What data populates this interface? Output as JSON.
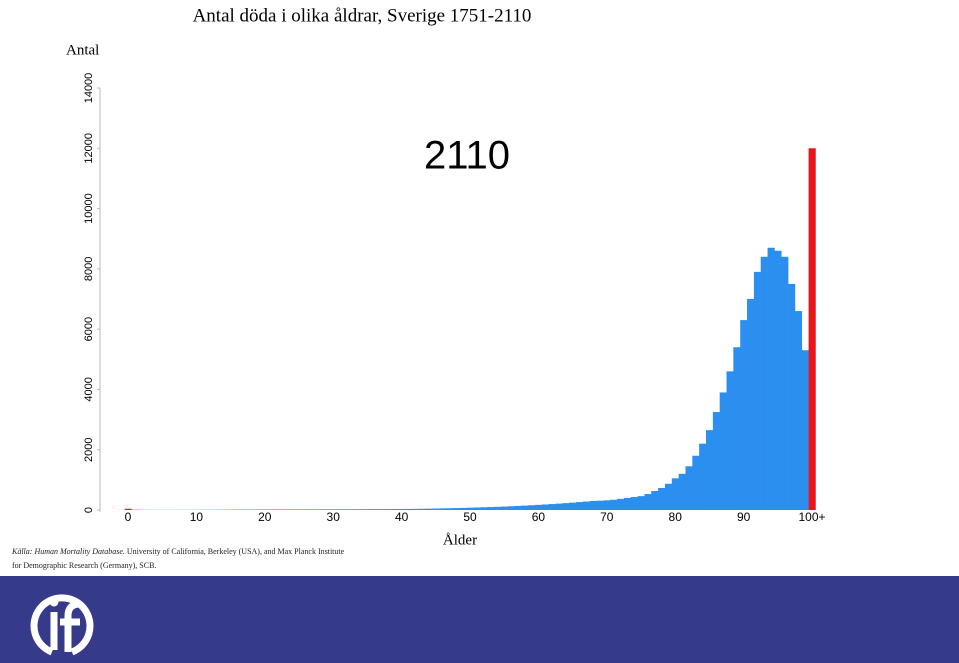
{
  "chart_data": {
    "type": "bar",
    "title": "Antal döda i olika åldrar, Sverige 1751-2110",
    "y_label": "Antal",
    "x_label": "Ålder",
    "annotation": "2110",
    "source_italic": "Källa: Human Mortality Database.",
    "source": "University of California, Berkeley (USA), and Max Planck Institute for Demographic Research (Germany), SCB.",
    "categories": [
      "0",
      null,
      null,
      null,
      null,
      null,
      null,
      null,
      null,
      null,
      "10",
      null,
      null,
      null,
      null,
      null,
      null,
      null,
      null,
      null,
      "20",
      null,
      null,
      null,
      null,
      null,
      null,
      null,
      null,
      null,
      "30",
      null,
      null,
      null,
      null,
      null,
      null,
      null,
      null,
      null,
      "40",
      null,
      null,
      null,
      null,
      null,
      null,
      null,
      null,
      null,
      "50",
      null,
      null,
      null,
      null,
      null,
      null,
      null,
      null,
      null,
      "60",
      null,
      null,
      null,
      null,
      null,
      null,
      null,
      null,
      null,
      "70",
      null,
      null,
      null,
      null,
      null,
      null,
      null,
      null,
      null,
      "80",
      null,
      null,
      null,
      null,
      null,
      null,
      null,
      null,
      null,
      "90",
      null,
      null,
      null,
      null,
      null,
      null,
      null,
      null,
      null,
      "100+"
    ],
    "values": [
      40,
      12,
      8,
      6,
      5,
      5,
      5,
      5,
      6,
      6,
      7,
      8,
      9,
      10,
      11,
      12,
      14,
      15,
      16,
      17,
      18,
      18,
      19,
      19,
      20,
      20,
      21,
      21,
      22,
      23,
      23,
      24,
      24,
      25,
      26,
      27,
      28,
      29,
      30,
      31,
      33,
      35,
      38,
      41,
      45,
      49,
      54,
      59,
      64,
      70,
      76,
      83,
      90,
      98,
      106,
      115,
      125,
      135,
      146,
      158,
      170,
      183,
      197,
      212,
      228,
      245,
      263,
      282,
      300,
      310,
      320,
      340,
      370,
      400,
      430,
      460,
      530,
      630,
      730,
      870,
      1050,
      1200,
      1450,
      1800,
      2200,
      2650,
      3250,
      3900,
      4600,
      5400,
      6300,
      7000,
      7900,
      8400,
      8700,
      8600,
      8400,
      7500,
      6600,
      5300,
      12000
    ],
    "colors": [
      "#e8151b",
      "#2b8ff0",
      "#2b8ff0",
      "#2b8ff0",
      "#2b8ff0",
      "#2b8ff0",
      "#2b8ff0",
      "#2b8ff0",
      "#2b8ff0",
      "#2b8ff0",
      "#2b8ff0",
      "#2b8ff0",
      "#2b8ff0",
      "#2b8ff0",
      "#2b8ff0",
      "#2b8ff0",
      "#2b8ff0",
      "#2b8ff0",
      "#2b8ff0",
      "#2b8ff0",
      "#2b8ff0",
      "#2b8ff0",
      "#2b8ff0",
      "#2b8ff0",
      "#2b8ff0",
      "#2b8ff0",
      "#2b8ff0",
      "#2b8ff0",
      "#2b8ff0",
      "#2b8ff0",
      "#2b8ff0",
      "#2b8ff0",
      "#2b8ff0",
      "#2b8ff0",
      "#2b8ff0",
      "#2b8ff0",
      "#2b8ff0",
      "#2b8ff0",
      "#2b8ff0",
      "#2b8ff0",
      "#2b8ff0",
      "#2b8ff0",
      "#2b8ff0",
      "#2b8ff0",
      "#2b8ff0",
      "#2b8ff0",
      "#2b8ff0",
      "#2b8ff0",
      "#2b8ff0",
      "#2b8ff0",
      "#2b8ff0",
      "#2b8ff0",
      "#2b8ff0",
      "#2b8ff0",
      "#2b8ff0",
      "#2b8ff0",
      "#2b8ff0",
      "#2b8ff0",
      "#2b8ff0",
      "#2b8ff0",
      "#2b8ff0",
      "#2b8ff0",
      "#2b8ff0",
      "#2b8ff0",
      "#2b8ff0",
      "#2b8ff0",
      "#2b8ff0",
      "#2b8ff0",
      "#2b8ff0",
      "#2b8ff0",
      "#2b8ff0",
      "#2b8ff0",
      "#2b8ff0",
      "#2b8ff0",
      "#2b8ff0",
      "#2b8ff0",
      "#2b8ff0",
      "#2b8ff0",
      "#2b8ff0",
      "#2b8ff0",
      "#2b8ff0",
      "#2b8ff0",
      "#2b8ff0",
      "#2b8ff0",
      "#2b8ff0",
      "#2b8ff0",
      "#2b8ff0",
      "#2b8ff0",
      "#2b8ff0",
      "#2b8ff0",
      "#2b8ff0",
      "#2b8ff0",
      "#2b8ff0",
      "#2b8ff0",
      "#2b8ff0",
      "#2b8ff0",
      "#2b8ff0",
      "#2b8ff0",
      "#2b8ff0",
      "#2b8ff0",
      "#e8151b"
    ],
    "ylim": [
      0,
      14000
    ],
    "yticks": [
      0,
      2000,
      4000,
      6000,
      8000,
      10000,
      12000,
      14000
    ]
  }
}
